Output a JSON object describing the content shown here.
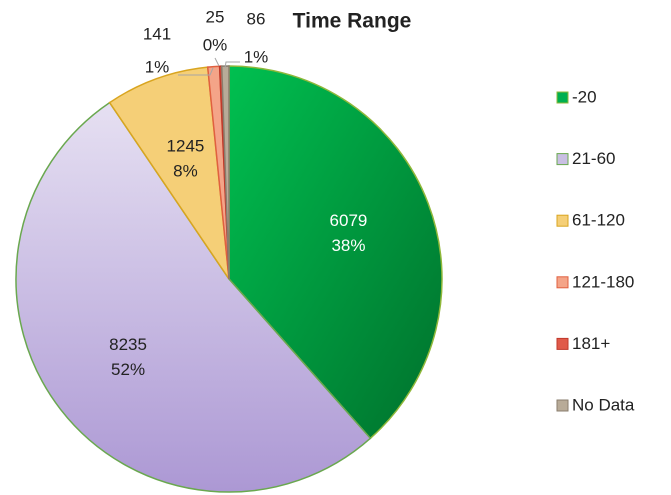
{
  "chart_data": {
    "type": "pie",
    "title": "Time Range",
    "categories": [
      "-20",
      "21-60",
      "61-120",
      "121-180",
      "181+",
      "No Data"
    ],
    "values": [
      6079,
      8235,
      1245,
      141,
      25,
      86
    ],
    "percent_labels": [
      "38%",
      "52%",
      "8%",
      "1%",
      "0%",
      "1%"
    ],
    "colors": [
      "#00b050",
      "#c9bfe3",
      "#f5cf77",
      "#f4a488",
      "#e05a4a",
      "#b8ab98"
    ],
    "legend": "right"
  }
}
